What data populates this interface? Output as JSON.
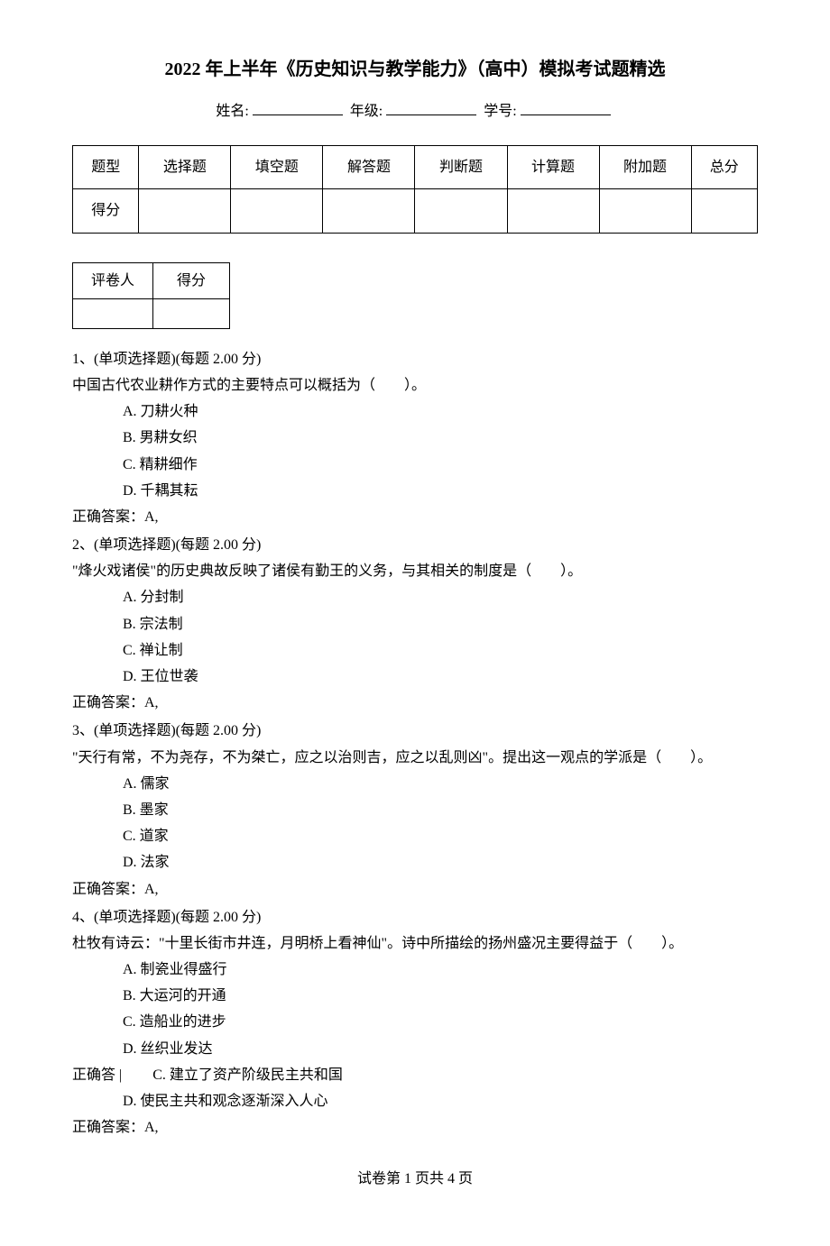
{
  "title": "2022 年上半年《历史知识与教学能力》（高中）模拟考试题精选",
  "info": {
    "name_label": "姓名:",
    "grade_label": "年级:",
    "id_label": "学号:"
  },
  "score_table": {
    "headers": [
      "题型",
      "选择题",
      "填空题",
      "解答题",
      "判断题",
      "计算题",
      "附加题",
      "总分"
    ],
    "row_label": "得分"
  },
  "grader_table": {
    "grader_label": "评卷人",
    "score_label": "得分"
  },
  "questions": [
    {
      "header": "1、(单项选择题)(每题 2.00 分)",
      "stem": "中国古代农业耕作方式的主要特点可以概括为（　　）。",
      "options": {
        "A": "A. 刀耕火种",
        "B": "B. 男耕女织",
        "C": "C. 精耕细作",
        "D": "D. 千耦其耘"
      },
      "answer": "正确答案：A,"
    },
    {
      "header": "2、(单项选择题)(每题 2.00 分)",
      "stem": "\"烽火戏诸侯\"的历史典故反映了诸侯有勤王的义务，与其相关的制度是（　　）。",
      "options": {
        "A": "A. 分封制",
        "B": "B. 宗法制",
        "C": "C. 禅让制",
        "D": "D. 王位世袭"
      },
      "answer": "正确答案：A,"
    },
    {
      "header": "3、(单项选择题)(每题 2.00 分)",
      "stem": "\"天行有常，不为尧存，不为桀亡，应之以治则吉，应之以乱则凶\"。提出这一观点的学派是（　　）。",
      "options": {
        "A": "A. 儒家",
        "B": "B. 墨家",
        "C": "C. 道家",
        "D": "D. 法家"
      },
      "answer": "正确答案：A,"
    },
    {
      "header": "4、(单项选择题)(每题 2.00 分)",
      "stem": "杜牧有诗云：\"十里长街市井连，月明桥上看神仙\"。诗中所描绘的扬州盛况主要得益于（　　）。",
      "options": {
        "A": "A. 制瓷业得盛行",
        "B": "B. 大运河的开通",
        "C": "C. 造船业的进步",
        "D": "D. 丝织业发达"
      },
      "answer_partial": "正确答 |",
      "inline_c": "C. 建立了资产阶级民主共和国",
      "extra_d": "D. 使民主共和观念逐渐深入人心",
      "final_answer": "正确答案：A,"
    }
  ],
  "footer": "试卷第 1 页共 4 页"
}
